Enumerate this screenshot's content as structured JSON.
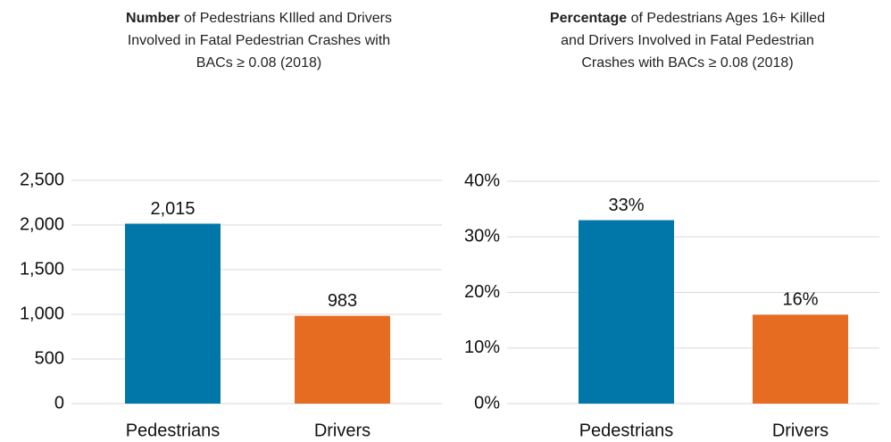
{
  "chart_data": [
    {
      "type": "bar",
      "title_emphasis": "Number",
      "title_rest": "of Pedestrians KIlled and Drivers Involved in Fatal Pedestrian Crashes with BACs ≥ 0.08 (2018)",
      "categories": [
        "Pedestrians",
        "Drivers"
      ],
      "values": [
        2015,
        983
      ],
      "value_labels": [
        "2,015",
        "983"
      ],
      "colors": [
        "#0077a8",
        "#e66c22"
      ],
      "ylim": [
        0,
        2500
      ],
      "yticks": [
        0,
        500,
        {
          "value": 1000,
          "label": "1,000"
        },
        {
          "value": 1500,
          "label": "1,500"
        },
        {
          "value": 2000,
          "label": "2,000"
        },
        {
          "value": 2500,
          "label": "2,500"
        }
      ],
      "grid": true
    },
    {
      "type": "bar",
      "title_emphasis": "Percentage",
      "title_rest": "of Pedestrians Ages 16+ Killed and Drivers Involved in Fatal Pedestrian Crashes with BACs ≥ 0.08 (2018)",
      "categories": [
        "Pedestrians",
        "Drivers"
      ],
      "values": [
        33,
        16
      ],
      "value_labels": [
        "33%",
        "16%"
      ],
      "colors": [
        "#0077a8",
        "#e66c22"
      ],
      "ylim": [
        0,
        40
      ],
      "yticks": [
        {
          "value": 0,
          "label": "0%"
        },
        {
          "value": 10,
          "label": "10%"
        },
        {
          "value": 20,
          "label": "20%"
        },
        {
          "value": 30,
          "label": "30%"
        },
        {
          "value": 40,
          "label": "40%"
        }
      ],
      "grid": true
    }
  ]
}
